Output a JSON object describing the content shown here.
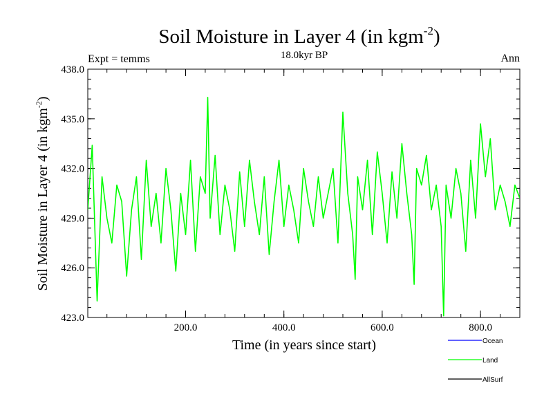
{
  "chart_data": {
    "type": "line",
    "title_main": "Soil Moisture in Layer 4 (in kgm",
    "title_sup": "-2",
    "title_close": ")",
    "subtitle": "18.0kyr BP",
    "left_label": "Expt = temms",
    "right_label": "Ann",
    "xlabel": "Time (in years since start)",
    "ylabel_main": "Soil Moisture in Layer 4 (in kgm",
    "ylabel_sup": "-2",
    "ylabel_close": ")",
    "xlim": [
      1,
      880
    ],
    "ylim": [
      423,
      438
    ],
    "x_ticks": [
      200,
      400,
      600,
      800
    ],
    "x_tick_labels": [
      "200.0",
      "400.0",
      "600.0",
      "800.0"
    ],
    "y_ticks": [
      423,
      426,
      429,
      432,
      435,
      438
    ],
    "y_tick_labels": [
      "423.0",
      "426.0",
      "429.0",
      "432.0",
      "435.0",
      "438.0"
    ],
    "legend": [
      {
        "name": "Ocean",
        "color": "#0000ff"
      },
      {
        "name": "Land",
        "color": "#00ff00"
      },
      {
        "name": "AllSurf",
        "color": "#000000"
      }
    ],
    "series": [
      {
        "name": "Land",
        "color": "#00ff00",
        "x": [
          1,
          10,
          20,
          30,
          40,
          50,
          60,
          70,
          80,
          90,
          100,
          110,
          120,
          130,
          140,
          150,
          160,
          170,
          180,
          190,
          200,
          210,
          220,
          230,
          240,
          245,
          250,
          260,
          270,
          280,
          290,
          300,
          310,
          320,
          330,
          340,
          350,
          360,
          370,
          380,
          390,
          400,
          410,
          420,
          430,
          440,
          450,
          460,
          470,
          480,
          490,
          500,
          510,
          520,
          530,
          540,
          545,
          550,
          560,
          570,
          580,
          590,
          600,
          610,
          620,
          630,
          640,
          650,
          660,
          665,
          670,
          680,
          690,
          700,
          710,
          720,
          725,
          730,
          740,
          750,
          760,
          770,
          780,
          790,
          800,
          810,
          820,
          830,
          840,
          850,
          860,
          870,
          880
        ],
        "values": [
          429.5,
          433.4,
          424.0,
          431.5,
          429.0,
          427.5,
          431.0,
          430.0,
          425.5,
          429.5,
          431.5,
          426.5,
          432.5,
          428.5,
          430.5,
          427.5,
          432.0,
          429.5,
          425.8,
          430.5,
          428.0,
          432.5,
          427.0,
          431.5,
          430.5,
          436.3,
          429.0,
          432.8,
          428.0,
          431.0,
          429.5,
          427.0,
          431.8,
          428.5,
          432.5,
          430.0,
          428.0,
          431.5,
          426.8,
          430.0,
          432.5,
          428.5,
          431.0,
          429.5,
          427.5,
          432.0,
          430.0,
          428.5,
          431.5,
          429.0,
          430.5,
          432.0,
          427.5,
          435.4,
          430.5,
          428.0,
          425.3,
          431.5,
          429.5,
          432.5,
          428.0,
          433.0,
          430.5,
          427.5,
          431.8,
          429.0,
          433.5,
          430.5,
          428.0,
          425.0,
          432.0,
          431.0,
          432.8,
          429.5,
          431.0,
          428.5,
          423.1,
          431.0,
          429.0,
          432.0,
          430.5,
          427.0,
          432.5,
          429.0,
          434.7,
          431.5,
          433.8,
          429.5,
          431.0,
          430.0,
          428.5,
          431.0,
          430.2
        ]
      }
    ]
  }
}
